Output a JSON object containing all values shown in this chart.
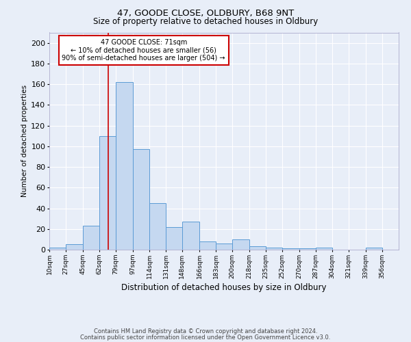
{
  "title1": "47, GOODE CLOSE, OLDBURY, B68 9NT",
  "title2": "Size of property relative to detached houses in Oldbury",
  "xlabel": "Distribution of detached houses by size in Oldbury",
  "ylabel": "Number of detached properties",
  "footnote1": "Contains HM Land Registry data © Crown copyright and database right 2024.",
  "footnote2": "Contains public sector information licensed under the Open Government Licence v3.0.",
  "annotation_line1": "47 GOODE CLOSE: 71sqm",
  "annotation_line2": "← 10% of detached houses are smaller (56)",
  "annotation_line3": "90% of semi-detached houses are larger (504) →",
  "red_line_x": 71,
  "categories": [
    "10sqm",
    "27sqm",
    "45sqm",
    "62sqm",
    "79sqm",
    "97sqm",
    "114sqm",
    "131sqm",
    "148sqm",
    "166sqm",
    "183sqm",
    "200sqm",
    "218sqm",
    "235sqm",
    "252sqm",
    "270sqm",
    "287sqm",
    "304sqm",
    "321sqm",
    "339sqm",
    "356sqm"
  ],
  "bin_edges": [
    10,
    27,
    45,
    62,
    79,
    97,
    114,
    131,
    148,
    166,
    183,
    200,
    218,
    235,
    252,
    270,
    287,
    304,
    321,
    339,
    356,
    373
  ],
  "values": [
    2,
    5,
    23,
    110,
    162,
    97,
    45,
    22,
    27,
    8,
    6,
    10,
    3,
    2,
    1,
    1,
    2,
    0,
    0,
    2,
    0
  ],
  "bar_color": "#c5d8f0",
  "bar_edge_color": "#5b9bd5",
  "red_line_color": "#cc0000",
  "background_color": "#e8eef8",
  "plot_bg_color": "#e8eef8",
  "annotation_box_edge": "#cc0000",
  "grid_color": "#ffffff",
  "ylim": [
    0,
    210
  ],
  "yticks": [
    0,
    20,
    40,
    60,
    80,
    100,
    120,
    140,
    160,
    180,
    200
  ]
}
